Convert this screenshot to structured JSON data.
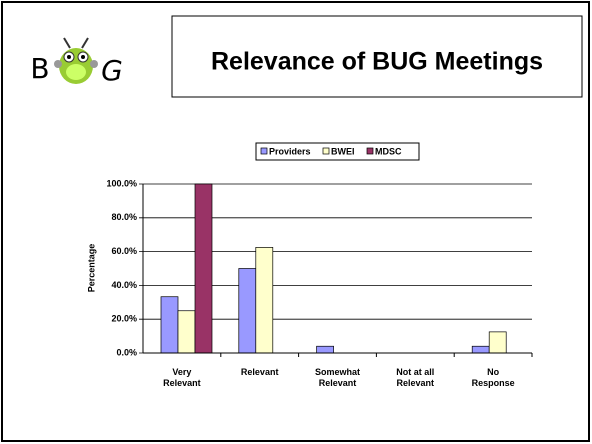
{
  "logo": {
    "left": "B",
    "right": "G"
  },
  "chart_data": {
    "type": "bar",
    "title": "Relevance of BUG Meetings",
    "y_label": "Percentage",
    "categories": [
      "Very\nRelevant",
      "Relevant",
      "Somewhat\nRelevant",
      "Not at all\nRelevant",
      "No\nResponse"
    ],
    "series": [
      {
        "name": "Providers",
        "color": "#9999ff",
        "values": [
          33.3,
          50,
          4,
          0,
          4
        ]
      },
      {
        "name": "BWEI",
        "color": "#ffffcc",
        "values": [
          25,
          62.5,
          0,
          0,
          12.5
        ]
      },
      {
        "name": "MDSC",
        "color": "#993366",
        "values": [
          100,
          0,
          0,
          0,
          0
        ]
      }
    ],
    "ylim": [
      0,
      100
    ],
    "yticks": [
      {
        "value": 0,
        "label": "0.0%"
      },
      {
        "value": 20,
        "label": "20.0%"
      },
      {
        "value": 40,
        "label": "40.0%"
      },
      {
        "value": 60,
        "label": "60.0%"
      },
      {
        "value": 80,
        "label": "80.0%"
      },
      {
        "value": 100,
        "label": "100.0%"
      }
    ],
    "grid": true,
    "legend": "top"
  }
}
